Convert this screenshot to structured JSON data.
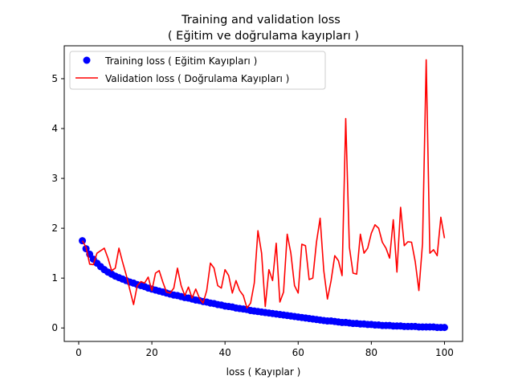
{
  "chart_data": {
    "type": "line",
    "title": "Training and validation loss",
    "subtitle": "( Eğitim ve doğrulama kayıpları )",
    "xlabel": "loss ( Kayıplar )",
    "ylabel": "",
    "xlim": [
      -3.95,
      104.95
    ],
    "ylim": [
      -0.27,
      5.66
    ],
    "x_ticks": [
      0,
      20,
      40,
      60,
      80,
      100
    ],
    "y_ticks": [
      0,
      1,
      2,
      3,
      4,
      5
    ],
    "grid": false,
    "legend_position": "top-left",
    "series": [
      {
        "name": "Training loss ( Eğitim Kayıpları )",
        "style": "markers",
        "color": "#0000ff",
        "x": [
          1,
          2,
          3,
          4,
          5,
          6,
          7,
          8,
          9,
          10,
          11,
          12,
          13,
          14,
          15,
          16,
          17,
          18,
          19,
          20,
          21,
          22,
          23,
          24,
          25,
          26,
          27,
          28,
          29,
          30,
          31,
          32,
          33,
          34,
          35,
          36,
          37,
          38,
          39,
          40,
          41,
          42,
          43,
          44,
          45,
          46,
          47,
          48,
          49,
          50,
          51,
          52,
          53,
          54,
          55,
          56,
          57,
          58,
          59,
          60,
          61,
          62,
          63,
          64,
          65,
          66,
          67,
          68,
          69,
          70,
          71,
          72,
          73,
          74,
          75,
          76,
          77,
          78,
          79,
          80,
          81,
          82,
          83,
          84,
          85,
          86,
          87,
          88,
          89,
          90,
          91,
          92,
          93,
          94,
          95,
          96,
          97,
          98,
          99,
          100
        ],
        "values": [
          1.75,
          1.59,
          1.48,
          1.38,
          1.3,
          1.23,
          1.17,
          1.12,
          1.08,
          1.04,
          1.01,
          0.98,
          0.95,
          0.92,
          0.9,
          0.87,
          0.85,
          0.83,
          0.8,
          0.78,
          0.76,
          0.74,
          0.72,
          0.7,
          0.68,
          0.66,
          0.65,
          0.63,
          0.61,
          0.6,
          0.58,
          0.56,
          0.55,
          0.53,
          0.52,
          0.5,
          0.49,
          0.47,
          0.46,
          0.44,
          0.43,
          0.42,
          0.4,
          0.39,
          0.38,
          0.37,
          0.35,
          0.34,
          0.33,
          0.32,
          0.31,
          0.3,
          0.29,
          0.28,
          0.27,
          0.26,
          0.25,
          0.24,
          0.23,
          0.22,
          0.21,
          0.2,
          0.19,
          0.18,
          0.17,
          0.16,
          0.15,
          0.14,
          0.14,
          0.13,
          0.12,
          0.11,
          0.11,
          0.1,
          0.09,
          0.09,
          0.08,
          0.08,
          0.07,
          0.07,
          0.06,
          0.06,
          0.05,
          0.05,
          0.05,
          0.04,
          0.04,
          0.04,
          0.03,
          0.03,
          0.03,
          0.03,
          0.02,
          0.02,
          0.02,
          0.02,
          0.02,
          0.01,
          0.01,
          0.01
        ]
      },
      {
        "name": "Validation loss ( Doğrulama Kayıpları )",
        "style": "line",
        "color": "#ff0000",
        "x": [
          1,
          2,
          3,
          4,
          5,
          6,
          7,
          8,
          9,
          10,
          11,
          12,
          13,
          14,
          15,
          16,
          17,
          18,
          19,
          20,
          21,
          22,
          23,
          24,
          25,
          26,
          27,
          28,
          29,
          30,
          31,
          32,
          33,
          34,
          35,
          36,
          37,
          38,
          39,
          40,
          41,
          42,
          43,
          44,
          45,
          46,
          47,
          48,
          49,
          50,
          51,
          52,
          53,
          54,
          55,
          56,
          57,
          58,
          59,
          60,
          61,
          62,
          63,
          64,
          65,
          66,
          67,
          68,
          69,
          70,
          71,
          72,
          73,
          74,
          75,
          76,
          77,
          78,
          79,
          80,
          81,
          82,
          83,
          84,
          85,
          86,
          87,
          88,
          89,
          90,
          91,
          92,
          93,
          94,
          95,
          96,
          97,
          98,
          99,
          100
        ],
        "values": [
          1.75,
          1.62,
          1.28,
          1.27,
          1.5,
          1.55,
          1.6,
          1.4,
          1.15,
          1.2,
          1.6,
          1.32,
          1.06,
          0.76,
          0.47,
          0.85,
          0.93,
          0.9,
          1.02,
          0.75,
          1.1,
          1.15,
          0.92,
          0.72,
          0.7,
          0.8,
          1.2,
          0.85,
          0.65,
          0.82,
          0.6,
          0.78,
          0.6,
          0.5,
          0.75,
          1.3,
          1.2,
          0.85,
          0.8,
          1.17,
          1.05,
          0.7,
          0.95,
          0.75,
          0.65,
          0.4,
          0.5,
          0.9,
          1.95,
          1.5,
          0.43,
          1.17,
          0.95,
          1.7,
          0.52,
          0.72,
          1.88,
          1.5,
          0.85,
          0.7,
          1.68,
          1.65,
          0.97,
          1.0,
          1.72,
          2.2,
          1.15,
          0.58,
          0.95,
          1.45,
          1.35,
          1.05,
          4.2,
          1.62,
          1.1,
          1.08,
          1.88,
          1.5,
          1.6,
          1.9,
          2.07,
          2.0,
          1.72,
          1.6,
          1.4,
          2.17,
          1.12,
          2.42,
          1.65,
          1.73,
          1.72,
          1.33,
          0.75,
          1.7,
          5.38,
          1.5,
          1.57,
          1.45,
          2.22,
          1.8
        ]
      }
    ]
  }
}
